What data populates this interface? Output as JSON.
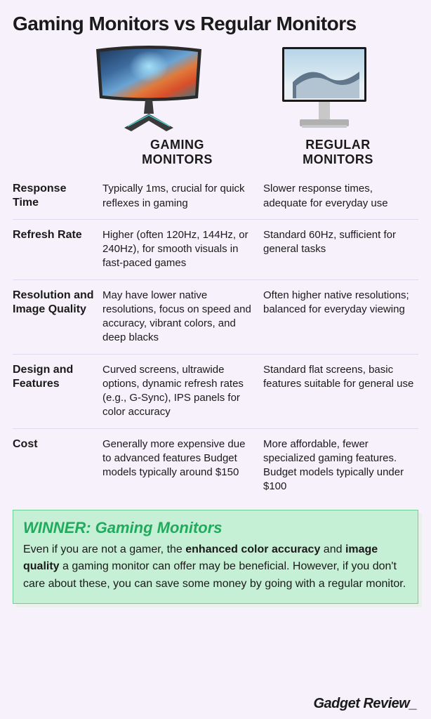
{
  "title": "Gaming Monitors vs Regular Monitors",
  "headers": {
    "gaming": "GAMING\nMONITORS",
    "regular": "REGULAR\nMONITORS"
  },
  "rows": [
    {
      "label": "Response Time",
      "gaming": "Typically 1ms, crucial for quick reflexes in gaming",
      "regular": "Slower response times, adequate for everyday use"
    },
    {
      "label": "Refresh Rate",
      "gaming": "Higher (often 120Hz, 144Hz, or 240Hz), for smooth visuals in fast-paced games",
      "regular": "Standard 60Hz, sufficient for general tasks"
    },
    {
      "label": "Resolution and Image Quality",
      "gaming": "May have lower native resolutions, focus on speed and accuracy, vibrant colors, and deep blacks",
      "regular": "Often higher native resolutions; balanced for everyday viewing"
    },
    {
      "label": "Design and Features",
      "gaming": "Curved screens, ultrawide options, dynamic refresh rates (e.g., G-Sync), IPS panels for color accuracy",
      "regular": "Standard flat screens, basic features suitable for general use"
    },
    {
      "label": "Cost",
      "gaming": "Generally more expensive due to advanced features Budget models typically around $150",
      "regular": "More affordable, fewer specialized gaming features. Budget models typically under $100"
    }
  ],
  "winner": {
    "title": "WINNER: Gaming Monitors",
    "text_parts": [
      {
        "t": "Even if you are not a gamer, the ",
        "b": false
      },
      {
        "t": "enhanced color accuracy",
        "b": true
      },
      {
        "t": " and ",
        "b": false
      },
      {
        "t": "image quality",
        "b": true
      },
      {
        "t": " a gaming monitor can offer may be beneficial. However, if you don't care about these, you can save some money by going with a regular monitor.",
        "b": false
      }
    ]
  },
  "brand": "Gadget Review_",
  "styling": {
    "page_bg": "#f6f1fb",
    "text_color": "#1a1a1a",
    "title_fontsize": 28,
    "title_weight": 800,
    "col_header_fontsize": 18,
    "row_label_fontsize": 16,
    "cell_fontsize": 15,
    "row_divider_color": "#e1d7ee",
    "winner_bg": "#c6f0d5",
    "winner_border": "#6dd093",
    "winner_title_color": "#1faa5c",
    "winner_title_fontsize": 22,
    "winner_text_fontsize": 16,
    "brand_fontsize": 20,
    "grid_columns": "120px 1fr 1fr",
    "gaming_monitor": {
      "bezel": "#2a2a2a",
      "screen_colors": [
        "#1e3a5f",
        "#3d6b9e",
        "#6aa5d4",
        "#e07a3a",
        "#d94e2a",
        "#3a7a8a"
      ],
      "stand": "#3a3a3a",
      "stand_accent": "#4ad0d0"
    },
    "regular_monitor": {
      "bezel": "#1a1a1a",
      "screen_colors": [
        "#b8d4e8",
        "#d4e6f0",
        "#e8eff5",
        "#4a6278"
      ],
      "stand": "#c8c8c8",
      "base": "#b0b0b0"
    }
  }
}
